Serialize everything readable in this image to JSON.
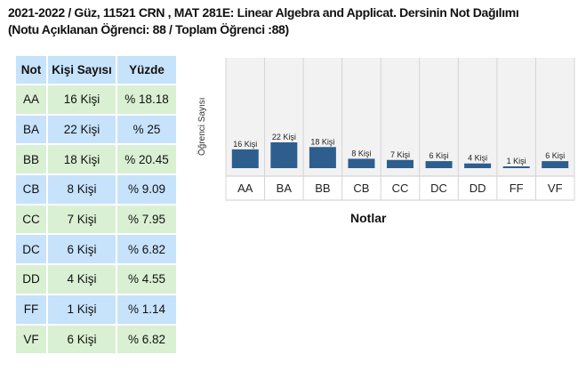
{
  "title": {
    "line1": "2021-2022 / Güz, 11521 CRN , MAT 281E: Linear Algebra and Applicat. Dersinin Not Dağılımı",
    "line2": "(Notu Açıklanan Öğrenci: 88 / Toplam Öğrenci :88)"
  },
  "table": {
    "headers": [
      "Not",
      "Kişi Sayısı",
      "Yüzde"
    ],
    "rows": [
      {
        "grade": "AA",
        "count": "16 Kişi",
        "percent": "% 18.18",
        "color": "green"
      },
      {
        "grade": "BA",
        "count": "22 Kişi",
        "percent": "% 25",
        "color": "blue"
      },
      {
        "grade": "BB",
        "count": "18 Kişi",
        "percent": "% 20.45",
        "color": "green"
      },
      {
        "grade": "CB",
        "count": "8 Kişi",
        "percent": "% 9.09",
        "color": "blue"
      },
      {
        "grade": "CC",
        "count": "7 Kişi",
        "percent": "% 7.95",
        "color": "green"
      },
      {
        "grade": "DC",
        "count": "6 Kişi",
        "percent": "% 6.82",
        "color": "blue"
      },
      {
        "grade": "DD",
        "count": "4 Kişi",
        "percent": "% 4.55",
        "color": "green"
      },
      {
        "grade": "FF",
        "count": "1 Kişi",
        "percent": "% 1.14",
        "color": "blue"
      },
      {
        "grade": "VF",
        "count": "6 Kişi",
        "percent": "% 6.82",
        "color": "green"
      }
    ]
  },
  "colors": {
    "bar": "#2e5e8e",
    "row_blue": "#c7e2fb",
    "row_green": "#d9f0d3",
    "plot_background": "#f2f2f2"
  },
  "chart_data": {
    "type": "bar",
    "xlabel": "Notlar",
    "ylabel": "Öğrenci Sayısı",
    "categories": [
      "AA",
      "BA",
      "BB",
      "CB",
      "CC",
      "DC",
      "DD",
      "FF",
      "VF"
    ],
    "values": [
      16,
      22,
      18,
      8,
      7,
      6,
      4,
      1,
      6
    ],
    "data_labels": [
      "16 Kişi",
      "22 Kişi",
      "18 Kişi",
      "8 Kişi",
      "7 Kişi",
      "6 Kişi",
      "4 Kişi",
      "1 Kişi",
      "6 Kişi"
    ],
    "grid": false,
    "legend": "none"
  }
}
